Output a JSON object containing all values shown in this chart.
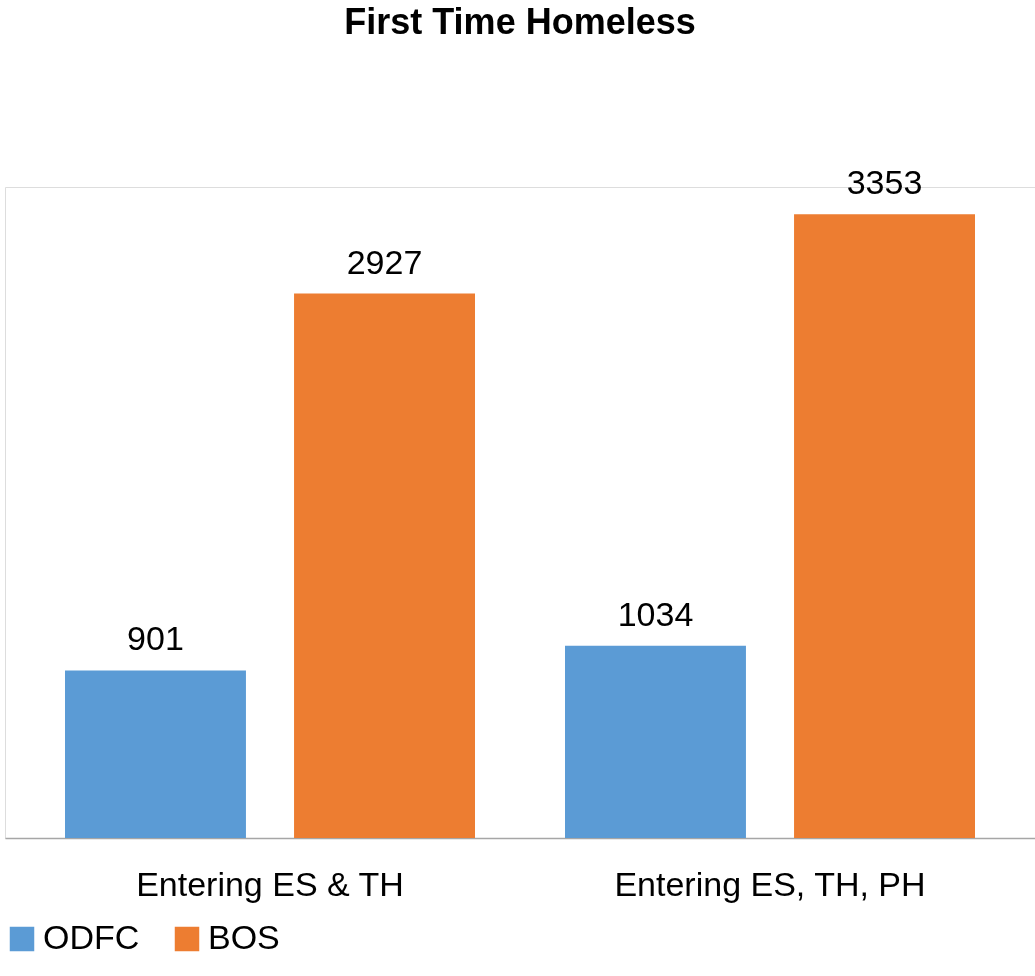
{
  "chart_data": {
    "type": "bar",
    "title": "First Time Homeless",
    "categories": [
      "Entering ES & TH",
      "Entering ES, TH, PH"
    ],
    "series": [
      {
        "name": "ODFC",
        "color": "#5b9bd5",
        "values": [
          901,
          1034
        ]
      },
      {
        "name": "BOS",
        "color": "#ed7d31",
        "values": [
          2927,
          3353
        ]
      }
    ],
    "data_labels": true,
    "legend": "bottom",
    "grid": false
  }
}
